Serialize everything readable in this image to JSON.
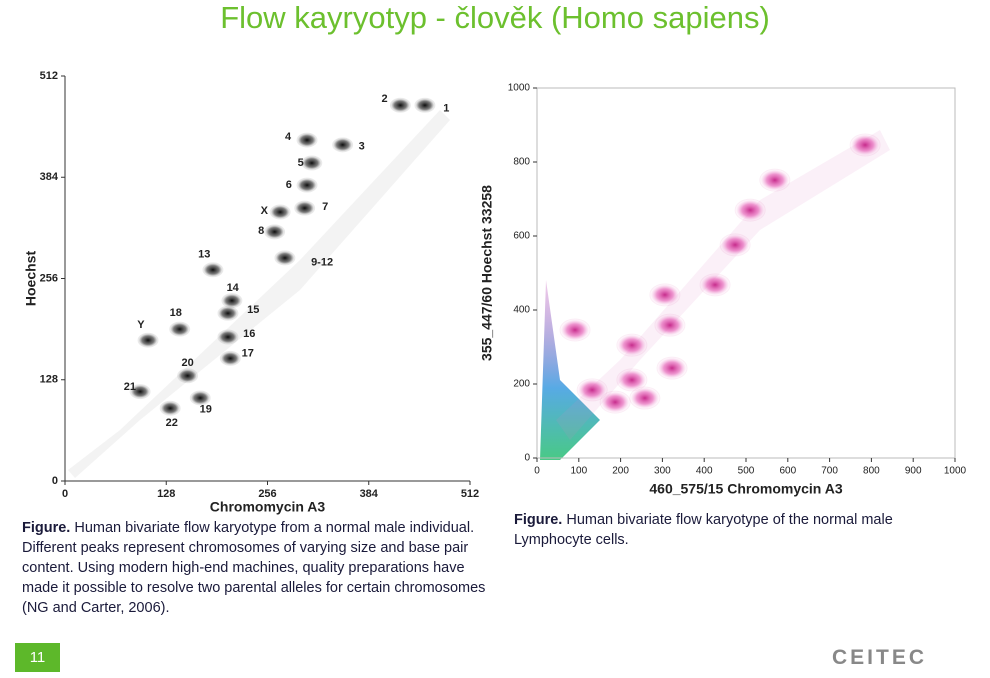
{
  "header": {
    "title": "Flow kayryotyp - člověk (Homo sapiens)"
  },
  "chart_data": [
    {
      "type": "scatter",
      "xlabel": "Chromomycin A3",
      "ylabel": "Hoechst",
      "xlim": [
        0,
        512
      ],
      "xticks": [
        0,
        128,
        256,
        384,
        512
      ],
      "ylim": [
        0,
        512
      ],
      "yticks": [
        0,
        128,
        256,
        384,
        512
      ],
      "color": "#111111",
      "x": [
        455,
        424,
        351,
        306,
        312,
        306,
        303,
        272,
        265,
        278,
        187,
        211,
        206,
        206,
        209,
        145,
        105,
        155,
        95,
        171,
        133
      ],
      "y": [
        475,
        475,
        425,
        431,
        402,
        374,
        345,
        340,
        315,
        282,
        267,
        228,
        212,
        182,
        155,
        192,
        178,
        133,
        113,
        105,
        92
      ],
      "annotations": [
        {
          "text": "1",
          "x": 482,
          "y": 471
        },
        {
          "text": "2",
          "x": 404,
          "y": 483
        },
        {
          "text": "3",
          "x": 375,
          "y": 423
        },
        {
          "text": "4",
          "x": 282,
          "y": 435
        },
        {
          "text": "5",
          "x": 298,
          "y": 402
        },
        {
          "text": "6",
          "x": 283,
          "y": 374
        },
        {
          "text": "7",
          "x": 329,
          "y": 346
        },
        {
          "text": "X",
          "x": 252,
          "y": 341
        },
        {
          "text": "8",
          "x": 248,
          "y": 316
        },
        {
          "text": "9-12",
          "x": 325,
          "y": 276
        },
        {
          "text": "13",
          "x": 176,
          "y": 286
        },
        {
          "text": "14",
          "x": 212,
          "y": 244
        },
        {
          "text": "15",
          "x": 238,
          "y": 216
        },
        {
          "text": "16",
          "x": 233,
          "y": 186
        },
        {
          "text": "17",
          "x": 231,
          "y": 161
        },
        {
          "text": "18",
          "x": 140,
          "y": 212
        },
        {
          "text": "Y",
          "x": 96,
          "y": 197
        },
        {
          "text": "20",
          "x": 155,
          "y": 149
        },
        {
          "text": "21",
          "x": 82,
          "y": 119
        },
        {
          "text": "19",
          "x": 178,
          "y": 90
        },
        {
          "text": "22",
          "x": 135,
          "y": 73
        }
      ]
    },
    {
      "type": "scatter",
      "xlabel": "460_575/15 Chromomycin A3",
      "ylabel": "355_447/60 Hoechst 33258",
      "xlim": [
        0,
        1000
      ],
      "xticks": [
        0,
        100,
        200,
        300,
        400,
        500,
        600,
        700,
        800,
        900,
        1000
      ],
      "ylim": [
        0,
        1000
      ],
      "yticks": [
        0,
        200,
        400,
        600,
        800,
        1000
      ],
      "color": "#d0208f",
      "x": [
        785,
        569,
        510,
        474,
        426,
        306,
        318,
        227,
        323,
        132,
        227,
        187,
        258,
        91
      ],
      "y": [
        846,
        751,
        670,
        576,
        468,
        441,
        359,
        305,
        243,
        184,
        211,
        151,
        162,
        346
      ]
    }
  ],
  "captions": [
    {
      "label": "Figure.",
      "text": "Human bivariate flow karyotype from a normal male individual. Different peaks represent chromosomes of varying size and base pair content. Using modern high-end machines, quality preparations have made it possible to resolve two parental alleles for certain chromosomes (NG and Carter, 2006)."
    },
    {
      "label": "Figure.",
      "text": "Human bivariate flow karyotype of the normal male Lymphocyte cells."
    }
  ],
  "footer": {
    "page": "11",
    "logo": "CEITEC"
  }
}
